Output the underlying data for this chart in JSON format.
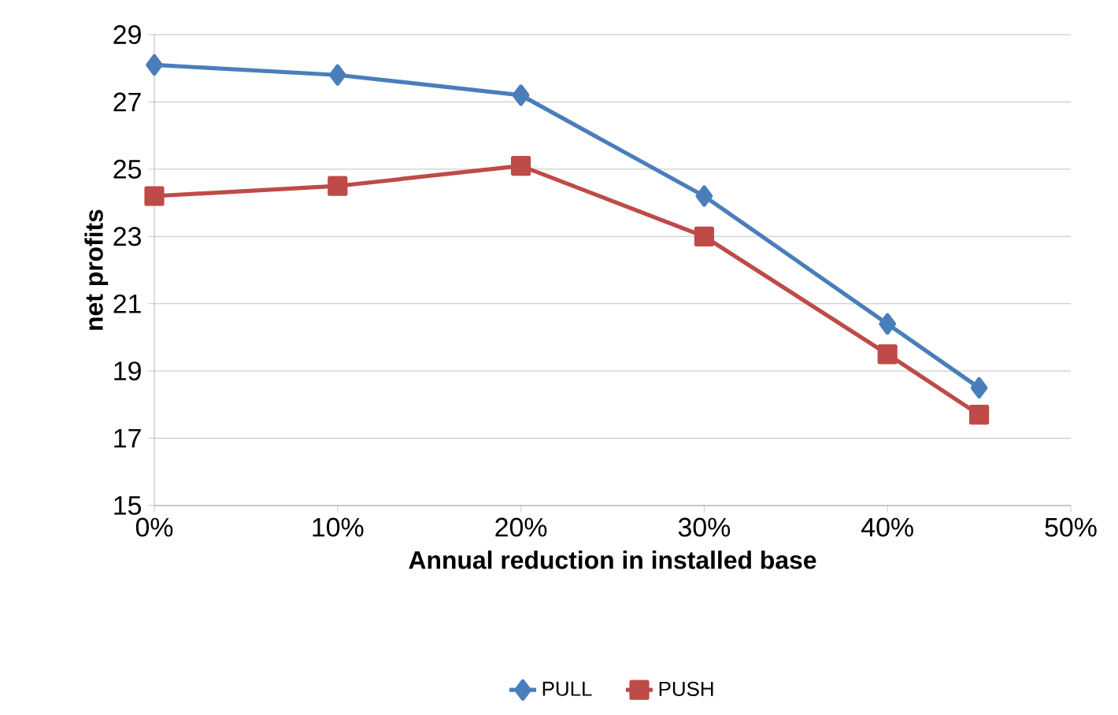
{
  "chart_data": {
    "type": "line",
    "xlabel": "Annual reduction in installed base",
    "ylabel": "net profits",
    "x": [
      0,
      10,
      20,
      30,
      40,
      45
    ],
    "series": [
      {
        "name": "PULL",
        "color": "#4a7ebb",
        "marker": "diamond",
        "values": [
          28.1,
          27.8,
          27.2,
          24.2,
          20.4,
          18.5
        ]
      },
      {
        "name": "PUSH",
        "color": "#be4b48",
        "marker": "square",
        "values": [
          24.2,
          24.5,
          25.1,
          23.0,
          19.5,
          17.7
        ]
      }
    ],
    "xlim": [
      0,
      50
    ],
    "xticks": [
      {
        "value": 0,
        "label": "0%"
      },
      {
        "value": 10,
        "label": "10%"
      },
      {
        "value": 20,
        "label": "20%"
      },
      {
        "value": 30,
        "label": "30%"
      },
      {
        "value": 40,
        "label": "40%"
      },
      {
        "value": 50,
        "label": "50%"
      }
    ],
    "ylim": [
      15,
      29
    ],
    "yticks": [
      15,
      17,
      19,
      21,
      23,
      25,
      27,
      29
    ],
    "grid": "y",
    "legend": "bottom"
  }
}
